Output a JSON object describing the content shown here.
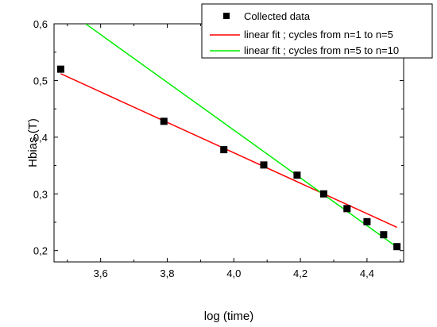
{
  "chart_data": {
    "type": "scatter",
    "title": "",
    "xlabel": "log (time)",
    "ylabel": "Hbias (T)",
    "xlim": [
      3.46,
      4.51
    ],
    "ylim": [
      0.18,
      0.6
    ],
    "x_ticks": [
      3.6,
      3.8,
      4.0,
      4.2,
      4.4
    ],
    "x_tick_labels": [
      "3,6",
      "3,8",
      "4,0",
      "4,2",
      "4,4"
    ],
    "y_ticks": [
      0.2,
      0.3,
      0.4,
      0.5,
      0.6
    ],
    "y_tick_labels": [
      "0,2",
      "0,3",
      "0,4",
      "0,5",
      "0,6"
    ],
    "grid": false,
    "legend_position": "top-right",
    "series": [
      {
        "name": "Collected data",
        "kind": "points",
        "marker": "square",
        "color": "#000000",
        "x": [
          3.48,
          3.79,
          3.97,
          4.09,
          4.19,
          4.27,
          4.34,
          4.4,
          4.45,
          4.49
        ],
        "y": [
          0.52,
          0.428,
          0.378,
          0.351,
          0.333,
          0.3,
          0.274,
          0.251,
          0.228,
          0.207
        ]
      },
      {
        "name": "linear fit ; cycles from n=1 to n=5",
        "kind": "line",
        "color": "#ff0000",
        "x": [
          3.48,
          4.49
        ],
        "y": [
          0.512,
          0.241
        ]
      },
      {
        "name": "linear fit ; cycles from n=5 to n=10",
        "kind": "line",
        "color": "#00ee00",
        "x": [
          3.555,
          4.495
        ],
        "y": [
          0.6,
          0.204
        ]
      }
    ]
  }
}
